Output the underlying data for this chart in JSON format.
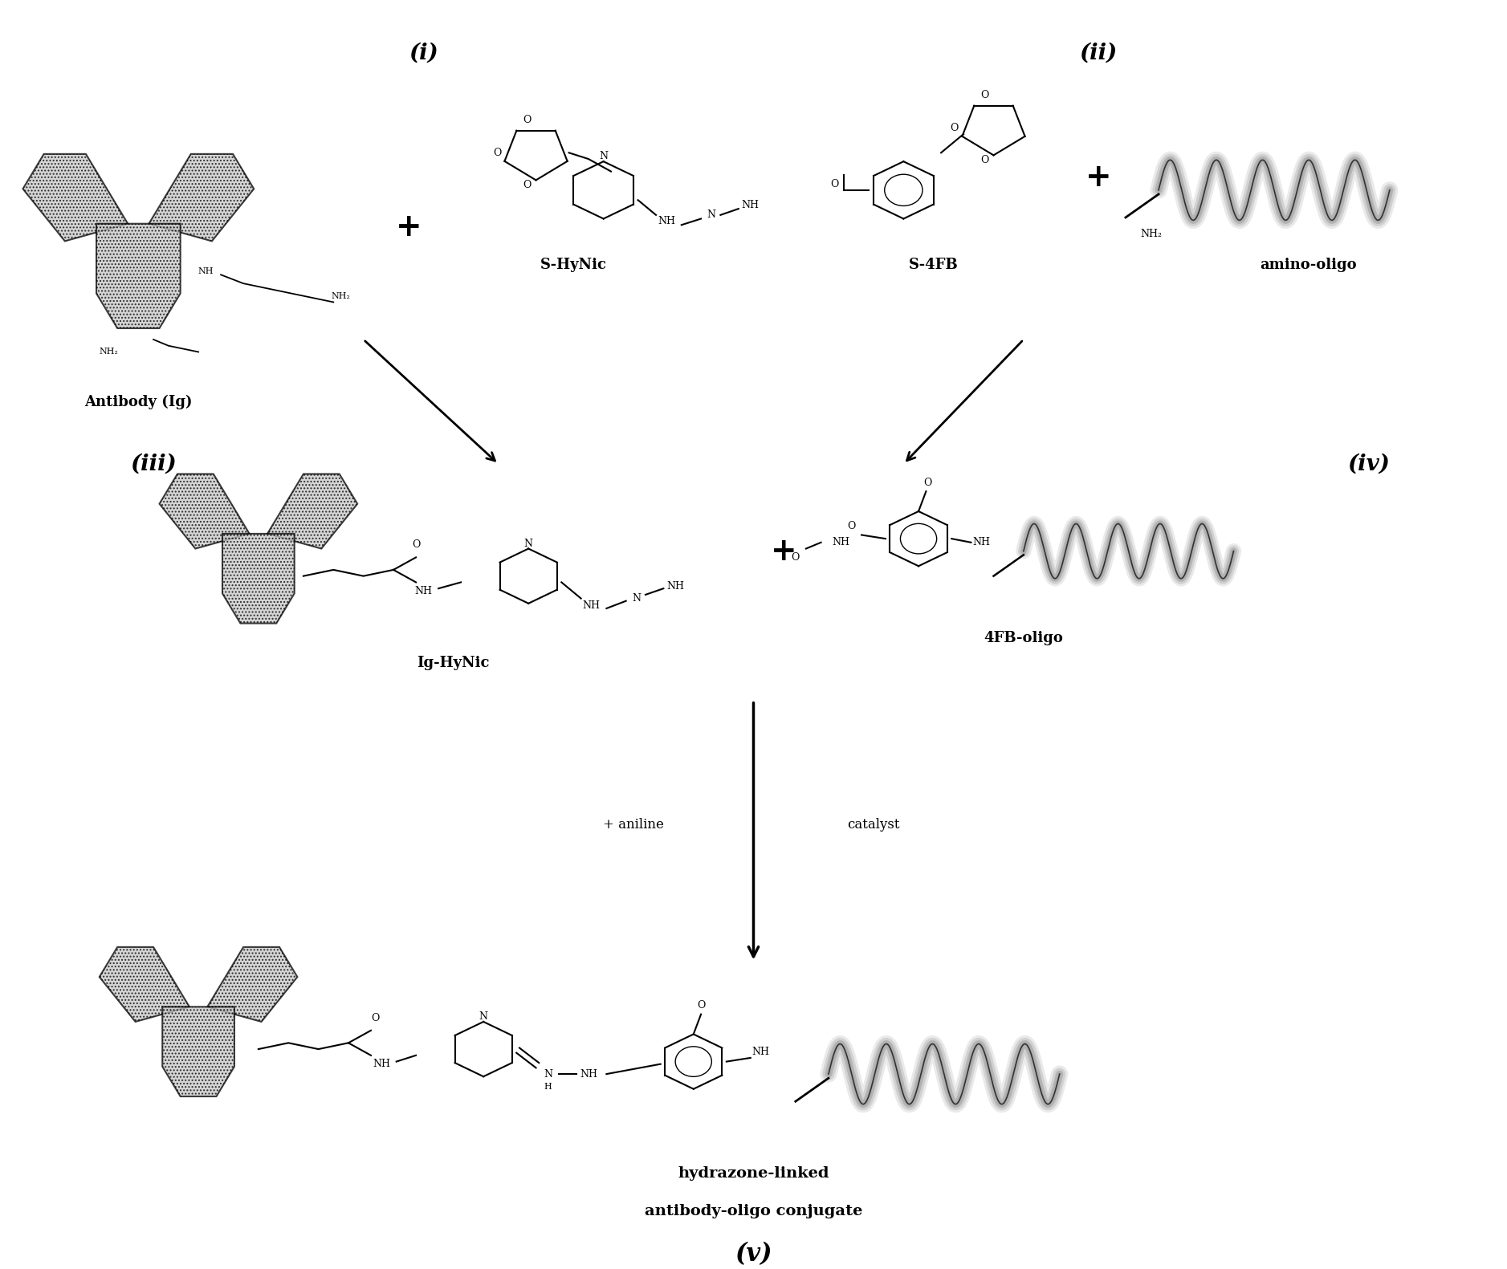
{
  "bg_color": "#ffffff",
  "fig_width": 18.77,
  "fig_height": 15.81,
  "labels": {
    "antibody": "Antibody (Ig)",
    "s_hynic": "S-HyNic",
    "s_4fb": "S-4FB",
    "amino_oligo": "amino-oligo",
    "ig_hynic": "Ig-HyNic",
    "fb_oligo": "4FB-oligo",
    "product_line1": "hydrazone-linked",
    "product_line2": "antibody-oligo conjugate",
    "step_i": "(i)",
    "step_ii": "(ii)",
    "step_iii": "(iii)",
    "step_iv": "(iv)",
    "step_v": "(v)",
    "aniline": "+ aniline",
    "catalyst": "catalyst"
  }
}
